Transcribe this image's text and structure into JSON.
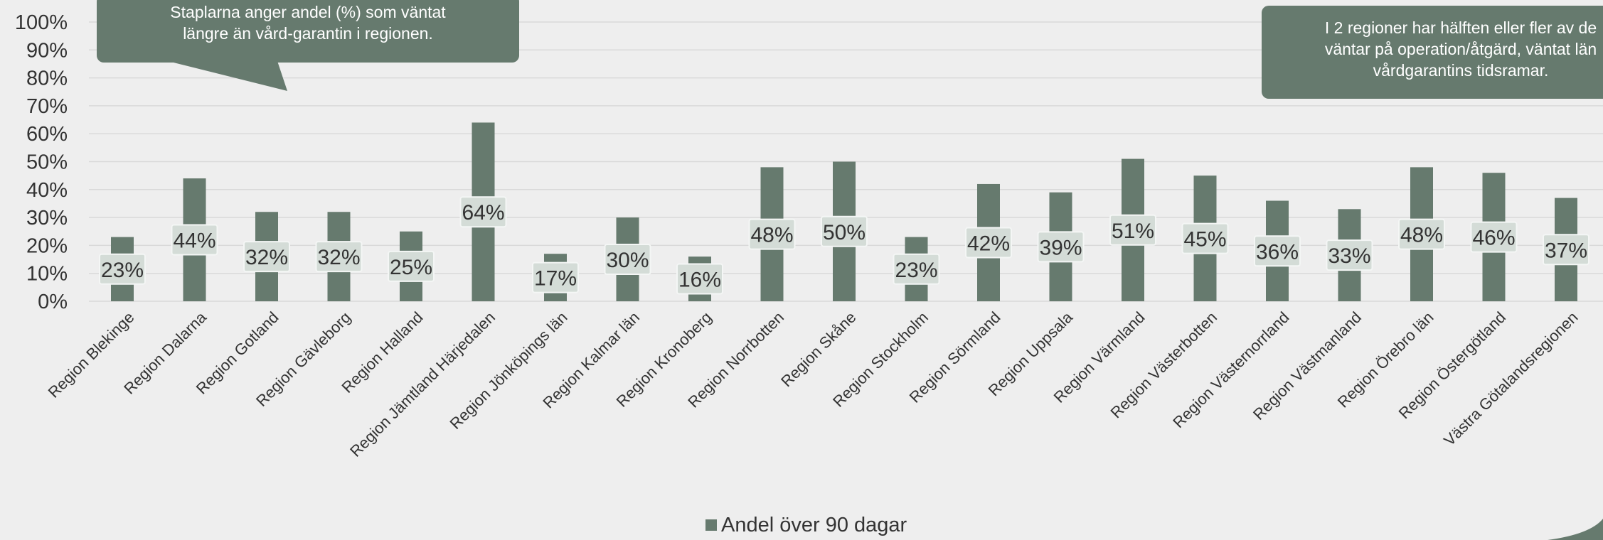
{
  "chart_data": {
    "type": "bar",
    "categories": [
      "Region Blekinge",
      "Region Dalarna",
      "Region Gotland",
      "Region Gävleborg",
      "Region Halland",
      "Region Jämtland Härjedalen",
      "Region Jönköpings län",
      "Region Kalmar län",
      "Region Kronoberg",
      "Region Norrbotten",
      "Region Skåne",
      "Region Stockholm",
      "Region Sörmland",
      "Region Uppsala",
      "Region Värmland",
      "Region Västerbotten",
      "Region Västernorrland",
      "Region Västmanland",
      "Region Örebro län",
      "Region Östergötland",
      "Västra Götalandsregionen"
    ],
    "series": [
      {
        "name": "Andel över  90 dagar",
        "values": [
          23,
          44,
          32,
          32,
          25,
          64,
          17,
          30,
          16,
          48,
          50,
          23,
          42,
          39,
          51,
          45,
          36,
          33,
          48,
          46,
          37
        ],
        "labels": [
          "23%",
          "44%",
          "32%",
          "32%",
          "25%",
          "64%",
          "17%",
          "30%",
          "16%",
          "48%",
          "50%",
          "23%",
          "42%",
          "39%",
          "51%",
          "45%",
          "36%",
          "33%",
          "48%",
          "46%",
          "37%"
        ]
      }
    ],
    "ylim": [
      0,
      100
    ],
    "yticks": [
      "0%",
      "10%",
      "20%",
      "30%",
      "40%",
      "50%",
      "60%",
      "70%",
      "80%",
      "90%",
      "100%"
    ],
    "grid": true,
    "legend_position": "bottom",
    "title": "",
    "xlabel": "",
    "ylabel": "",
    "colors": {
      "bar": "#667a6e",
      "callout": "#667a6e",
      "grid": "#d9d9d9"
    }
  },
  "callouts": {
    "left": "Staplarna anger andel (%) som väntat\nlängre än vård-garantin i regionen.",
    "right": "I 2 regioner har hälften eller fler av de\nväntar på operation/åtgärd, väntat län\nvårdgarantins tidsramar."
  },
  "legend": {
    "label": "Andel över  90 dagar"
  }
}
